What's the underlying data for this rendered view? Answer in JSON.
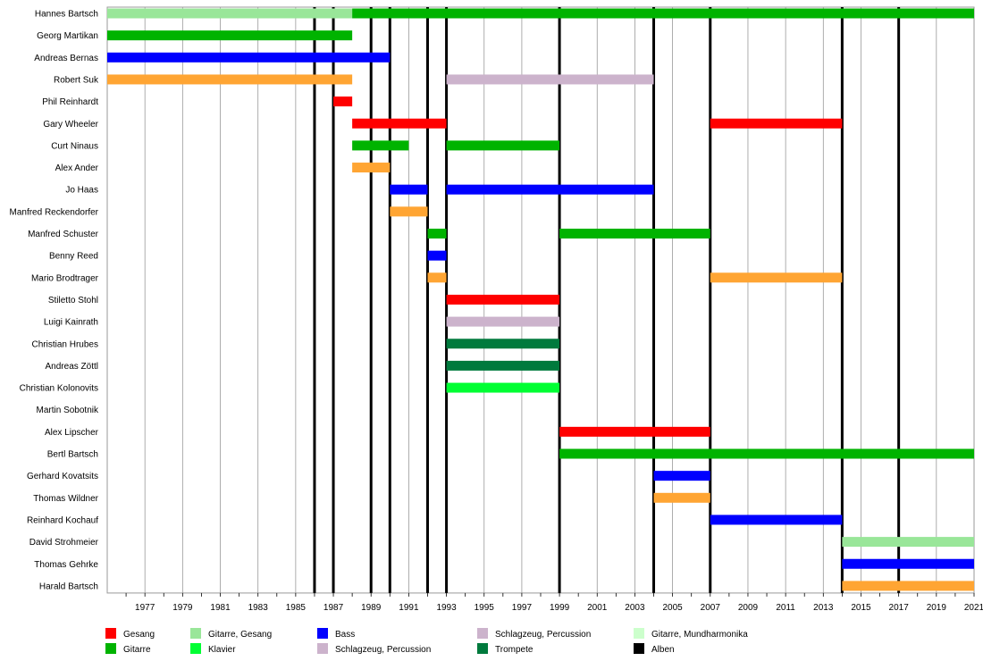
{
  "chart_data": {
    "type": "timeline",
    "x_range": [
      1975,
      2021
    ],
    "tick_labels": [
      "1977",
      "1979",
      "1981",
      "1983",
      "1985",
      "1987",
      "1989",
      "1991",
      "1993",
      "1995",
      "1997",
      "1999",
      "2001",
      "2003",
      "2005",
      "2007",
      "2009",
      "2011",
      "2013",
      "2015",
      "2017",
      "2019",
      "2021"
    ],
    "roles": {
      "gesang": {
        "label": "Gesang",
        "color": "#ff0000"
      },
      "gitarre": {
        "label": "Gitarre",
        "color": "#00b300"
      },
      "gitarre_gesang": {
        "label": "Gitarre, Gesang",
        "color": "#99e699"
      },
      "klavier": {
        "label": "Klavier",
        "color": "#00ff33"
      },
      "bass": {
        "label": "Bass",
        "color": "#0000ff"
      },
      "schlagzeug1": {
        "label": "Schlagzeug, Percussion",
        "color": "#ffa533"
      },
      "schlagzeug2": {
        "label": "Schlagzeug, Percussion",
        "color": "#ccb3cc"
      },
      "trompete": {
        "label": "Trompete",
        "color": "#007a3d"
      },
      "mundharmonika": {
        "label": "Gitarre, Mundharmonika",
        "color": "#ccffcc"
      },
      "alben": {
        "label": "Alben",
        "color": "#000000"
      }
    },
    "legend": [
      [
        "gesang",
        "gitarre"
      ],
      [
        "gitarre_gesang",
        "klavier"
      ],
      [
        "bass",
        "schlagzeug2"
      ],
      [
        "schlagzeug2",
        "trompete"
      ],
      [
        "mundharmonika",
        "alben"
      ]
    ],
    "members": [
      {
        "name": "Hannes Bartsch",
        "periods": [
          {
            "start": 1975,
            "end": 1988,
            "role": "gitarre_gesang"
          },
          {
            "start": 1988,
            "end": 2021,
            "role": "gitarre"
          }
        ]
      },
      {
        "name": "Georg Martikan",
        "periods": [
          {
            "start": 1975,
            "end": 1988,
            "role": "gitarre"
          }
        ]
      },
      {
        "name": "Andreas Bernas",
        "periods": [
          {
            "start": 1975,
            "end": 1990,
            "role": "bass"
          }
        ]
      },
      {
        "name": "Robert Suk",
        "periods": [
          {
            "start": 1975,
            "end": 1988,
            "role": "schlagzeug1"
          },
          {
            "start": 1993,
            "end": 2004,
            "role": "schlagzeug2"
          }
        ]
      },
      {
        "name": "Phil Reinhardt",
        "periods": [
          {
            "start": 1987,
            "end": 1988,
            "role": "gesang"
          }
        ]
      },
      {
        "name": "Gary Wheeler",
        "periods": [
          {
            "start": 1988,
            "end": 1993,
            "role": "gesang"
          },
          {
            "start": 2007,
            "end": 2014,
            "role": "gesang"
          }
        ]
      },
      {
        "name": "Curt Ninaus",
        "periods": [
          {
            "start": 1988,
            "end": 1991,
            "role": "gitarre"
          },
          {
            "start": 1993,
            "end": 1999,
            "role": "gitarre"
          }
        ]
      },
      {
        "name": "Alex Ander",
        "periods": [
          {
            "start": 1988,
            "end": 1990,
            "role": "schlagzeug1"
          }
        ]
      },
      {
        "name": "Jo Haas",
        "periods": [
          {
            "start": 1990,
            "end": 1992,
            "role": "bass"
          },
          {
            "start": 1993,
            "end": 2004,
            "role": "bass"
          }
        ]
      },
      {
        "name": "Manfred Reckendorfer",
        "periods": [
          {
            "start": 1990,
            "end": 1992,
            "role": "schlagzeug1"
          }
        ]
      },
      {
        "name": "Manfred Schuster",
        "periods": [
          {
            "start": 1992,
            "end": 1993,
            "role": "gitarre"
          },
          {
            "start": 1999,
            "end": 2007,
            "role": "gitarre"
          }
        ]
      },
      {
        "name": "Benny Reed",
        "periods": [
          {
            "start": 1992,
            "end": 1993,
            "role": "bass"
          }
        ]
      },
      {
        "name": "Mario Brodtrager",
        "periods": [
          {
            "start": 1992,
            "end": 1993,
            "role": "schlagzeug1"
          },
          {
            "start": 2007,
            "end": 2014,
            "role": "schlagzeug1"
          }
        ]
      },
      {
        "name": "Stiletto Stohl",
        "periods": [
          {
            "start": 1993,
            "end": 1999,
            "role": "gesang"
          }
        ]
      },
      {
        "name": "Luigi Kainrath",
        "periods": [
          {
            "start": 1993,
            "end": 1999,
            "role": "schlagzeug2"
          }
        ]
      },
      {
        "name": "Christian Hrubes",
        "periods": [
          {
            "start": 1993,
            "end": 1999,
            "role": "trompete"
          }
        ]
      },
      {
        "name": "Andreas Zöttl",
        "periods": [
          {
            "start": 1993,
            "end": 1999,
            "role": "trompete"
          }
        ]
      },
      {
        "name": "Christian Kolonovits",
        "periods": [
          {
            "start": 1993,
            "end": 1999,
            "role": "klavier"
          }
        ]
      },
      {
        "name": "Martin Sobotnik",
        "periods": []
      },
      {
        "name": "Alex Lipscher",
        "periods": [
          {
            "start": 1999,
            "end": 2007,
            "role": "gesang"
          }
        ]
      },
      {
        "name": "Bertl Bartsch",
        "periods": [
          {
            "start": 1999,
            "end": 2021,
            "role": "gitarre"
          }
        ]
      },
      {
        "name": "Gerhard Kovatsits",
        "periods": [
          {
            "start": 2004,
            "end": 2007,
            "role": "bass"
          }
        ]
      },
      {
        "name": "Thomas Wildner",
        "periods": [
          {
            "start": 2004,
            "end": 2007,
            "role": "schlagzeug1"
          }
        ]
      },
      {
        "name": "Reinhard Kochauf",
        "periods": [
          {
            "start": 2007,
            "end": 2014,
            "role": "bass"
          }
        ]
      },
      {
        "name": "David Strohmeier",
        "periods": [
          {
            "start": 2014,
            "end": 2021,
            "role": "gitarre_gesang"
          }
        ]
      },
      {
        "name": "Thomas Gehrke",
        "periods": [
          {
            "start": 2014,
            "end": 2021,
            "role": "bass"
          }
        ]
      },
      {
        "name": "Harald Bartsch",
        "periods": [
          {
            "start": 2014,
            "end": 2021,
            "role": "schlagzeug1"
          }
        ]
      }
    ],
    "albums": [
      1986,
      1987,
      1989,
      1990,
      1992,
      1993,
      1999,
      2004,
      2007,
      2014,
      2017
    ]
  }
}
